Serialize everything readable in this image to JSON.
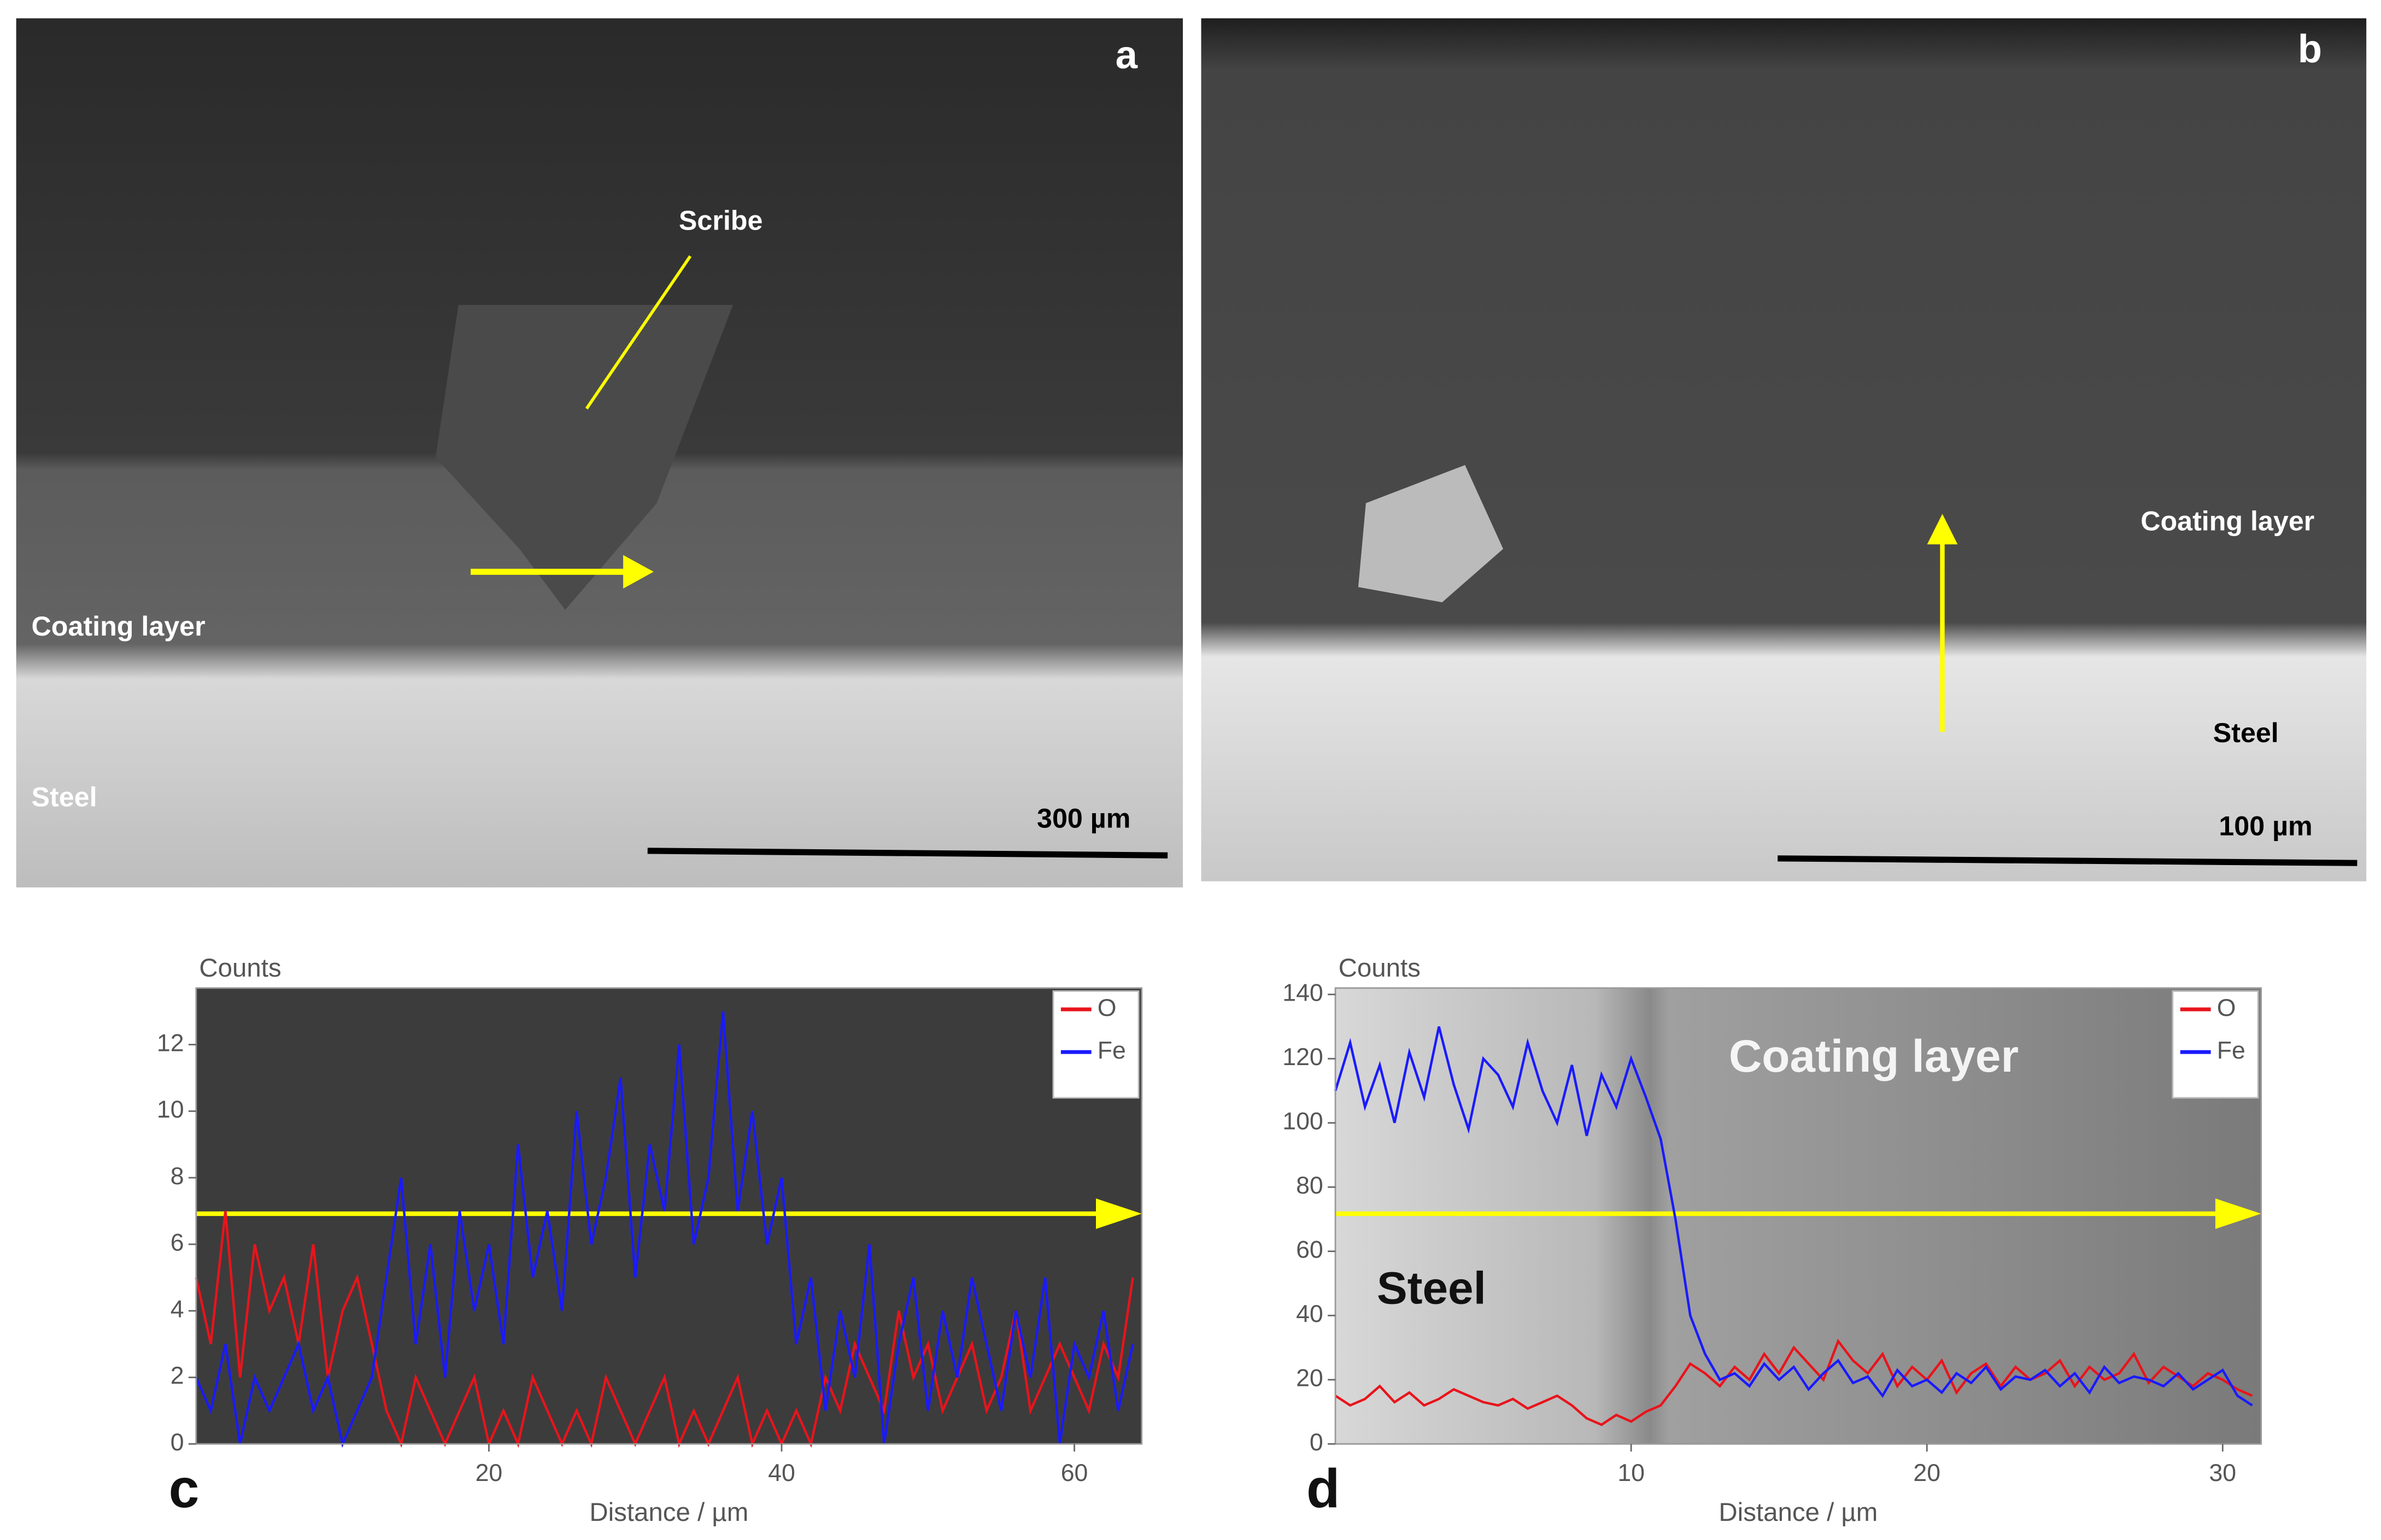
{
  "images": [
    {
      "panel": "a",
      "labels": [
        "Scribe",
        "Coating layer",
        "Steel"
      ],
      "scale_bar": "300 µm"
    },
    {
      "panel": "b",
      "labels": [
        "Coating layer",
        "Steel"
      ],
      "scale_bar": "100 µm"
    }
  ],
  "chart_data": [
    {
      "type": "line",
      "panel": "c",
      "ylabel": "Counts",
      "xlabel": "Distance / µm",
      "x": [
        0,
        1,
        2,
        3,
        4,
        5,
        6,
        7,
        8,
        9,
        10,
        11,
        12,
        13,
        14,
        15,
        16,
        17,
        18,
        19,
        20,
        21,
        22,
        23,
        24,
        25,
        26,
        27,
        28,
        29,
        30,
        31,
        32,
        33,
        34,
        35,
        36,
        37,
        38,
        39,
        40,
        41,
        42,
        43,
        44,
        45,
        46,
        47,
        48,
        49,
        50,
        51,
        52,
        53,
        54,
        55,
        56,
        57,
        58,
        59,
        60,
        61,
        62,
        63,
        64
      ],
      "series": [
        {
          "name": "O",
          "color": "#e8141c",
          "values": [
            5,
            3,
            7,
            2,
            6,
            4,
            5,
            3,
            6,
            2,
            4,
            5,
            3,
            1,
            0,
            2,
            1,
            0,
            1,
            2,
            0,
            1,
            0,
            2,
            1,
            0,
            1,
            0,
            2,
            1,
            0,
            1,
            2,
            0,
            1,
            0,
            1,
            2,
            0,
            1,
            0,
            1,
            0,
            2,
            1,
            3,
            2,
            1,
            4,
            2,
            3,
            1,
            2,
            3,
            1,
            2,
            4,
            1,
            2,
            3,
            2,
            1,
            3,
            2,
            5
          ]
        },
        {
          "name": "Fe",
          "color": "#1a1aff",
          "values": [
            2,
            1,
            3,
            0,
            2,
            1,
            2,
            3,
            1,
            2,
            0,
            1,
            2,
            5,
            8,
            3,
            6,
            2,
            7,
            4,
            6,
            3,
            9,
            5,
            7,
            4,
            10,
            6,
            8,
            11,
            5,
            9,
            7,
            12,
            6,
            8,
            13,
            7,
            10,
            6,
            8,
            3,
            5,
            1,
            4,
            2,
            6,
            0,
            3,
            5,
            1,
            4,
            2,
            5,
            3,
            1,
            4,
            2,
            5,
            0,
            3,
            2,
            4,
            1,
            3
          ]
        }
      ],
      "xlim": [
        0,
        64.6
      ],
      "ylim": [
        0,
        13.7
      ],
      "xticks": [
        20,
        40,
        60
      ],
      "yticks": [
        0,
        2,
        4,
        6,
        8,
        10,
        12
      ],
      "legend": "upper right"
    },
    {
      "type": "line",
      "panel": "d",
      "ylabel": "Counts",
      "xlabel": "Distance / µm",
      "annotations": [
        "Coating layer",
        "Steel"
      ],
      "x": [
        0,
        0.5,
        1,
        1.5,
        2,
        2.5,
        3,
        3.5,
        4,
        4.5,
        5,
        5.5,
        6,
        6.5,
        7,
        7.5,
        8,
        8.5,
        9,
        9.5,
        10,
        10.5,
        11,
        11.5,
        12,
        12.5,
        13,
        13.5,
        14,
        14.5,
        15,
        15.5,
        16,
        16.5,
        17,
        17.5,
        18,
        18.5,
        19,
        19.5,
        20,
        20.5,
        21,
        21.5,
        22,
        22.5,
        23,
        23.5,
        24,
        24.5,
        25,
        25.5,
        26,
        26.5,
        27,
        27.5,
        28,
        28.5,
        29,
        29.5,
        30,
        30.5,
        31
      ],
      "series": [
        {
          "name": "O",
          "color": "#e8141c",
          "values": [
            15,
            12,
            14,
            18,
            13,
            16,
            12,
            14,
            17,
            15,
            13,
            12,
            14,
            11,
            13,
            15,
            12,
            8,
            6,
            9,
            7,
            10,
            12,
            18,
            25,
            22,
            18,
            24,
            20,
            28,
            22,
            30,
            25,
            20,
            32,
            26,
            22,
            28,
            18,
            24,
            20,
            26,
            16,
            22,
            25,
            18,
            24,
            20,
            22,
            26,
            18,
            24,
            20,
            22,
            28,
            19,
            24,
            21,
            18,
            22,
            20,
            17,
            15
          ]
        },
        {
          "name": "Fe",
          "color": "#1a1aff",
          "values": [
            110,
            125,
            105,
            118,
            100,
            122,
            108,
            130,
            112,
            98,
            120,
            115,
            105,
            125,
            110,
            100,
            118,
            96,
            115,
            105,
            120,
            108,
            95,
            70,
            40,
            28,
            20,
            22,
            18,
            25,
            20,
            24,
            17,
            22,
            26,
            19,
            21,
            15,
            23,
            18,
            20,
            16,
            22,
            19,
            24,
            17,
            21,
            20,
            23,
            18,
            22,
            16,
            24,
            19,
            21,
            20,
            18,
            22,
            17,
            20,
            23,
            15,
            12
          ]
        }
      ],
      "xlim": [
        0,
        31.3
      ],
      "ylim": [
        0,
        142
      ],
      "xticks": [
        10,
        20,
        30
      ],
      "yticks": [
        0,
        20,
        40,
        60,
        80,
        100,
        120,
        140
      ],
      "legend": "upper right"
    }
  ]
}
